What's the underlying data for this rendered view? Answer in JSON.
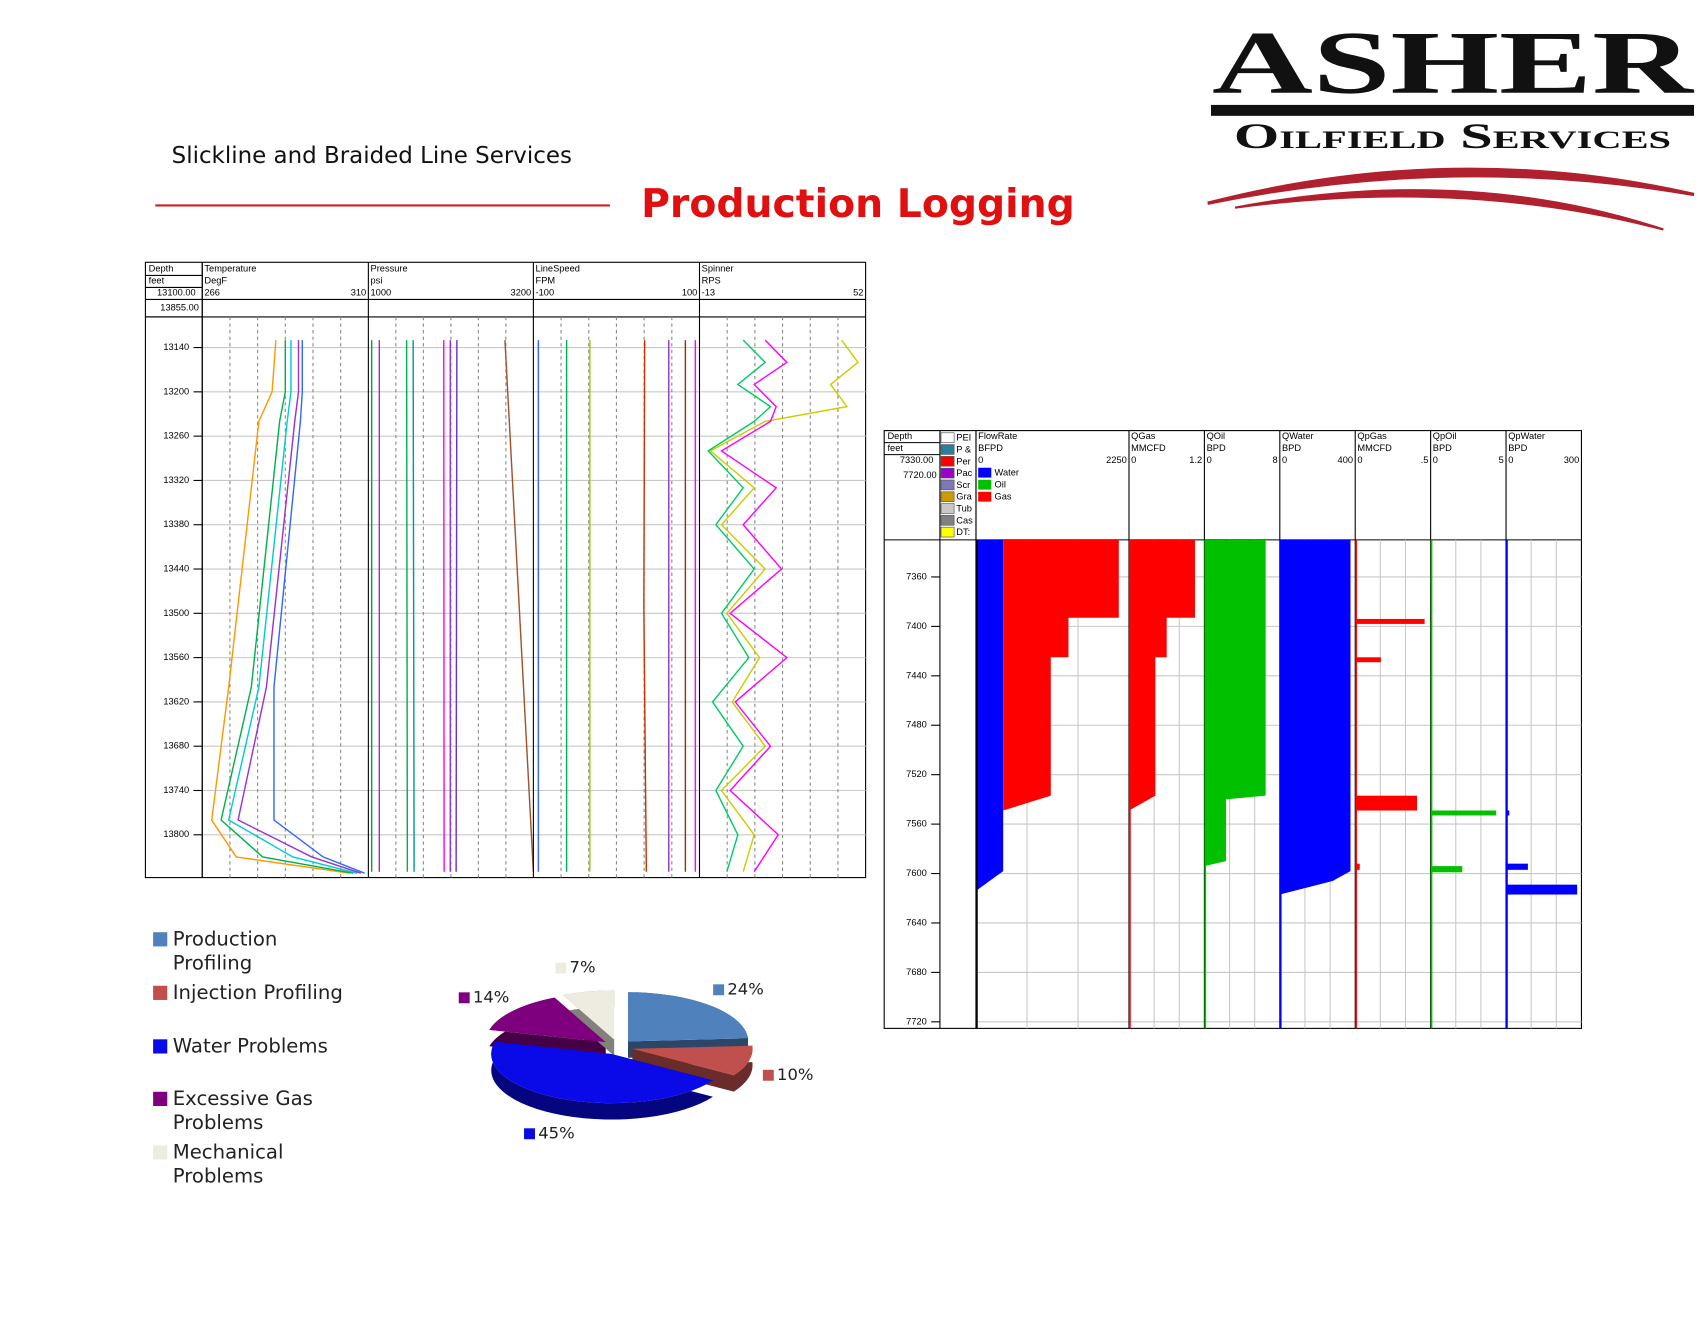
{
  "header": {
    "subtitle": "Slickline and Braided Line Services",
    "title": "Production Logging"
  },
  "logo": {
    "name": "ASHER",
    "tagline": "Oilfield Services"
  },
  "log_left": {
    "depth": {
      "label": "Depth",
      "unit": "feet",
      "top": {
        "value": 13100,
        "label": "13100.00"
      },
      "bottom": {
        "value": 13855,
        "label": "13855.00"
      }
    },
    "depth_ticks": [
      13140,
      13200,
      13260,
      13320,
      13380,
      13440,
      13500,
      13560,
      13620,
      13680,
      13740,
      13800
    ],
    "tracks": [
      {
        "name": "Temperature",
        "unit": "DegF",
        "min": 266,
        "max": 310,
        "curves": [
          {
            "color": "#ff9900",
            "depths": [
              13130,
              13200,
              13240,
              13600,
              13780,
              13830,
              13852
            ],
            "values": [
              285.5,
              284.5,
              281,
              273,
              268.5,
              275,
              305
            ]
          },
          {
            "color": "#00b050",
            "depths": [
              13130,
              13200,
              13240,
              13600,
              13780,
              13830,
              13852
            ],
            "values": [
              288,
              288,
              286.5,
              279,
              271,
              282,
              306
            ]
          },
          {
            "color": "#00cccc",
            "depths": [
              13130,
              13200,
              13240,
              13600,
              13780,
              13830,
              13852
            ],
            "values": [
              289.5,
              289.5,
              288.5,
              281,
              273,
              290,
              307
            ]
          },
          {
            "color": "#9933cc",
            "depths": [
              13130,
              13200,
              13240,
              13600,
              13780,
              13830,
              13852
            ],
            "values": [
              291.5,
              291.5,
              290.5,
              283,
              275.5,
              295,
              308
            ]
          },
          {
            "color": "#3366ff",
            "depths": [
              13130,
              13200,
              13240,
              13600,
              13780,
              13830,
              13852
            ],
            "values": [
              292.5,
              292.5,
              292,
              285,
              285,
              298,
              309
            ]
          }
        ]
      },
      {
        "name": "Pressure",
        "unit": "psi",
        "min": 1000,
        "max": 3200,
        "curves": [
          {
            "color": "#00a050",
            "depths": [
              13130,
              13850
            ],
            "values": [
              1044,
              1044
            ]
          },
          {
            "color": "#9933cc",
            "depths": [
              13130,
              13850
            ],
            "values": [
              1146,
              1146
            ]
          },
          {
            "color": "#00b050",
            "depths": [
              13130,
              13850
            ],
            "values": [
              1510,
              1520
            ]
          },
          {
            "color": "#009999",
            "depths": [
              13130,
              13850
            ],
            "values": [
              1597,
              1610
            ]
          },
          {
            "color": "#ff00ff",
            "depths": [
              13130,
              13850
            ],
            "values": [
              2005,
              2010
            ]
          },
          {
            "color": "#9933cc",
            "depths": [
              13130,
              13850
            ],
            "values": [
              2092,
              2092
            ]
          },
          {
            "color": "#6633cc",
            "depths": [
              13130,
              13850
            ],
            "values": [
              2180,
              2170
            ]
          },
          {
            "color": "#a0522d",
            "depths": [
              13130,
              13850
            ],
            "values": [
              2821,
              3200
            ]
          }
        ]
      },
      {
        "name": "LineSpeed",
        "unit": "FPM",
        "min": -100,
        "max": 100,
        "curves": [
          {
            "color": "#3366ff",
            "depths": [
              13130,
              13490,
              13850
            ],
            "values": [
              -94,
              -94,
              -94
            ]
          },
          {
            "color": "#00b050",
            "depths": [
              13130,
              13490,
              13850
            ],
            "values": [
              -60,
              -60,
              -60
            ]
          },
          {
            "color": "#99cc00",
            "depths": [
              13130,
              13490,
              13850
            ],
            "values": [
              -32,
              -32,
              -32
            ]
          },
          {
            "color": "#cc3300",
            "depths": [
              13130,
              13490,
              13850
            ],
            "values": [
              34,
              33,
              36
            ]
          },
          {
            "color": "#9933cc",
            "depths": [
              13130,
              13490,
              13850
            ],
            "values": [
              63,
              63,
              63
            ]
          },
          {
            "color": "#993300",
            "depths": [
              13130,
              13490,
              13850
            ],
            "values": [
              83,
              83,
              83
            ]
          },
          {
            "color": "#ff00ff",
            "depths": [
              13130,
              13490,
              13850
            ],
            "values": [
              95,
              95,
              95
            ]
          }
        ]
      },
      {
        "name": "Spinner",
        "unit": "RPS",
        "min": -13,
        "max": 52,
        "curves": [
          {
            "color": "#cccc00",
            "depths": [
              13130,
              13160,
              13190,
              13220,
              13240,
              13280,
              13330,
              13380,
              13440,
              13500,
              13560,
              13620,
              13680,
              13740,
              13800,
              13850
            ],
            "values": [
              42.6,
              49,
              38.3,
              44.7,
              12.7,
              -8.7,
              8.4,
              -4.4,
              12.7,
              -2.3,
              10.5,
              -0.2,
              12.7,
              -4.4,
              8.4,
              4.1
            ]
          },
          {
            "color": "#ff00ff",
            "depths": [
              13130,
              13160,
              13190,
              13220,
              13240,
              13280,
              13330,
              13380,
              13440,
              13500,
              13560,
              13620,
              13680,
              13740,
              13800,
              13850
            ],
            "values": [
              12.7,
              21.2,
              8.4,
              17,
              14.8,
              -4.4,
              17,
              4.1,
              19.1,
              -1,
              21.2,
              1,
              14.8,
              -1,
              17.8,
              8.4
            ]
          },
          {
            "color": "#00cc66",
            "depths": [
              13130,
              13160,
              13190,
              13220,
              13240,
              13280,
              13330,
              13380,
              13440,
              13500,
              13560,
              13620,
              13680,
              13740,
              13800,
              13850
            ],
            "values": [
              4.1,
              12.7,
              2,
              14.8,
              8.4,
              -9.6,
              4.1,
              -6.6,
              8.4,
              -4.4,
              6.3,
              -7.9,
              4.1,
              -6.6,
              2,
              -2.3
            ]
          }
        ]
      }
    ]
  },
  "log_right": {
    "depth": {
      "label": "Depth",
      "unit": "feet",
      "top": {
        "value": 7330,
        "label": "7330.00"
      },
      "bottom": {
        "value": 7720,
        "label": "7720.00"
      }
    },
    "depth_ticks": [
      7360,
      7400,
      7440,
      7480,
      7520,
      7560,
      7600,
      7640,
      7680,
      7720
    ],
    "legend": {
      "labels": [
        "PEI",
        "P &",
        "Per",
        "Pac",
        "Scr",
        "Gra",
        "Tub",
        "Cas",
        "DT:"
      ],
      "colors": [
        "#ffffff",
        "#2a7f9e",
        "#ff0000",
        "#9900cc",
        "#7a7ab8",
        "#cc9900",
        "#c8c8c8",
        "#808080",
        "#ffff00"
      ]
    },
    "tracks": [
      {
        "name": "FlowRate",
        "unit": "BFPD",
        "min": 0,
        "max": 2250,
        "line": "#000000",
        "legend": [
          {
            "name": "Water",
            "color": "#0000ff"
          },
          {
            "name": "Oil",
            "color": "#00c000"
          },
          {
            "name": "Gas",
            "color": "#ff0000"
          }
        ],
        "profiles": [
          {
            "color": "#0000ff",
            "depths": [
              7330,
              7598,
              7614
            ],
            "values": [
              400,
              400,
              0
            ]
          },
          {
            "color": "#ff0000",
            "stacked": true,
            "depths": [
              7330,
              7393,
              7393,
              7425,
              7425,
              7537,
              7549
            ],
            "values": [
              1700,
              1700,
              960,
              960,
              700,
              700,
              0
            ]
          }
        ]
      },
      {
        "name": "QGas",
        "unit": "MMCFD",
        "min": 0,
        "max": 1.2,
        "line": "#ff0000",
        "profiles": [
          {
            "color": "#ff0000",
            "depths": [
              7330,
              7393,
              7393,
              7425,
              7425,
              7537,
              7549
            ],
            "values": [
              1.05,
              1.05,
              0.6,
              0.6,
              0.42,
              0.42,
              0
            ]
          }
        ]
      },
      {
        "name": "QOil",
        "unit": "BPD",
        "min": 0,
        "max": 8,
        "line": "#00c000",
        "profiles": [
          {
            "color": "#00c000",
            "depths": [
              7330,
              7537,
              7540,
              7590,
              7594
            ],
            "values": [
              6.5,
              6.5,
              2.3,
              2.3,
              0
            ]
          }
        ]
      },
      {
        "name": "QWater",
        "unit": "BPD",
        "min": 0,
        "max": 400,
        "line": "#0000ff",
        "profiles": [
          {
            "color": "#0000ff",
            "depths": [
              7330,
              7598,
              7606,
              7617
            ],
            "values": [
              375,
              375,
              280,
              0
            ]
          }
        ]
      },
      {
        "name": "QpGas",
        "unit": "MMCFD",
        "min": 0,
        "max": {
          "value": 0.5,
          "label": ".5"
        },
        "line": "#ff0000",
        "bars": {
          "color": "#ff0000",
          "tops": [
            7394,
            7425,
            7537,
            7592
          ],
          "bottoms": [
            7398,
            7429,
            7549,
            7597
          ],
          "values": [
            0.46,
            0.17,
            0.41,
            0.03
          ]
        }
      },
      {
        "name": "QpOil",
        "unit": "BPD",
        "min": 0,
        "max": 5,
        "line": "#00c000",
        "bars": {
          "color": "#00c000",
          "tops": [
            7549,
            7594
          ],
          "bottoms": [
            7553,
            7599
          ],
          "values": [
            4.35,
            2.1
          ]
        }
      },
      {
        "name": "QpWater",
        "unit": "BPD",
        "min": 0,
        "max": 300,
        "line": "#0000ff",
        "bars": {
          "color": "#0000ff",
          "tops": [
            7549,
            7592,
            7609
          ],
          "bottoms": [
            7553,
            7597,
            7617
          ],
          "values": [
            13,
            87,
            283
          ]
        }
      }
    ]
  },
  "chart_data": {
    "type": "pie",
    "categories": [
      "Production Profiling",
      "Injection Profiling",
      "Water Problems",
      "Excessive Gas Problems",
      "Mechanical Problems"
    ],
    "values": [
      24,
      10,
      45,
      14,
      7
    ],
    "value_labels": [
      "24%",
      "10%",
      "45%",
      "14%",
      "7%"
    ],
    "colors": [
      "#4f81bd",
      "#c0504d",
      "#0a0ae8",
      "#7f007f",
      "#eeece1"
    ]
  }
}
